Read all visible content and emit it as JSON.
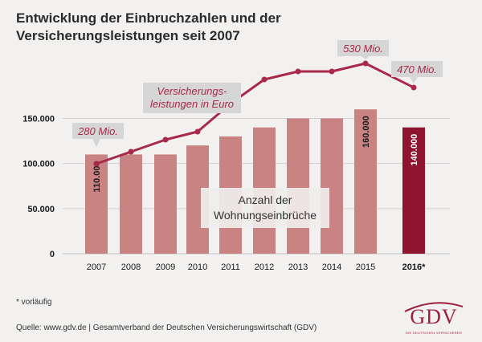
{
  "title_line1": "Entwicklung der Einbruchzahlen und der",
  "title_line2": "Versicherungsleistungen seit 2007",
  "footnote": "* vorläufig",
  "source": "Quelle: www.gdv.de | Gesamtverband der Deutschen Versicherungswirtschaft (GDV)",
  "logo": {
    "text": "GDV",
    "subtext": "DIE DEUTSCHEN VERSICHERER"
  },
  "colors": {
    "bar": "#c98383",
    "bar_highlight": "#8e1430",
    "line": "#a8294a",
    "callout_bg": "#d6d6d6",
    "callout_text": "#a8294a",
    "axis_text": "#1a1a1a",
    "grid": "#d0d0d0"
  },
  "chart_data": {
    "type": "bar",
    "categories": [
      "2007",
      "2008",
      "2009",
      "2010",
      "2011",
      "2012",
      "2013",
      "2014",
      "2015",
      "2016*"
    ],
    "series": [
      {
        "name": "Anzahl der Wohnungseinbrüche",
        "values": [
          110000,
          110000,
          110000,
          120000,
          130000,
          140000,
          150000,
          150000,
          160000,
          140000
        ]
      },
      {
        "name": "Versicherungsleistungen in Euro",
        "type": "line",
        "values": [
          280,
          310,
          340,
          360,
          430,
          490,
          510,
          510,
          530,
          470
        ]
      }
    ],
    "bar_labels": {
      "0": "110.000",
      "8": "160.000",
      "9": "140.000"
    },
    "line_callouts": [
      {
        "index": 0,
        "text": "280 Mio."
      },
      {
        "index": 8,
        "text": "530 Mio."
      },
      {
        "index": 9,
        "text": "470 Mio."
      }
    ],
    "line_series_label": [
      "Versicherungs-",
      "leistungen in Euro"
    ],
    "bar_series_label": [
      "Anzahl der",
      "Wohnungseinbrüche"
    ],
    "y_ticks": [
      "0",
      "50.000",
      "100.000",
      "150.000"
    ],
    "ylim": [
      0,
      170000
    ],
    "line_ylim": [
      0,
      600
    ],
    "highlight_index": 9
  }
}
